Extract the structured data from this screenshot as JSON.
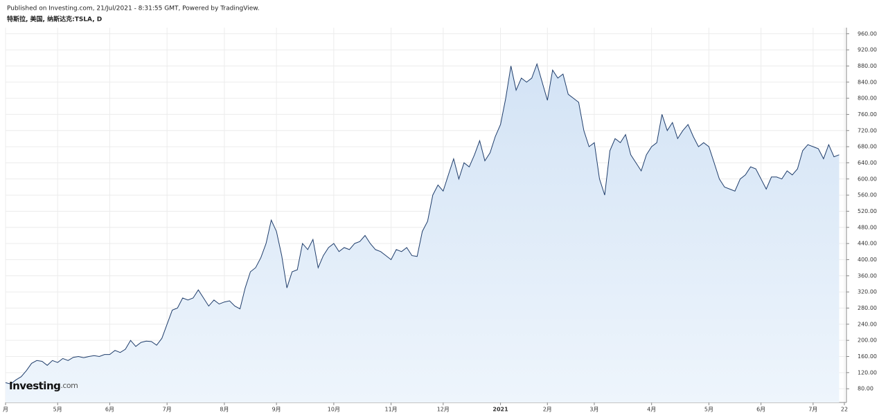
{
  "header": {
    "published": "Published on Investing.com, 21/Jul/2021 - 8:31:55 GMT, Powered by TradingView.",
    "symbol": "特斯拉, 美国, 纳斯达克:TSLA, D"
  },
  "logo": {
    "main": "Investing",
    "suffix": ".com"
  },
  "chart_data": {
    "type": "area",
    "color": "#1f3d6b",
    "fill": "#dce9f7",
    "grid": true,
    "y_axis_side": "right",
    "categories": [
      "月",
      null,
      null,
      null,
      null,
      null,
      null,
      null,
      null,
      null,
      "5月",
      null,
      null,
      null,
      null,
      null,
      null,
      null,
      null,
      null,
      "6月",
      null,
      null,
      null,
      null,
      null,
      null,
      null,
      null,
      null,
      null,
      "7月",
      null,
      null,
      null,
      null,
      null,
      null,
      null,
      null,
      null,
      null,
      "8月",
      null,
      null,
      null,
      null,
      null,
      null,
      null,
      null,
      null,
      "9月",
      null,
      null,
      null,
      null,
      null,
      null,
      null,
      null,
      null,
      null,
      "10月",
      null,
      null,
      null,
      null,
      null,
      null,
      null,
      null,
      null,
      null,
      "11月",
      null,
      null,
      null,
      null,
      null,
      null,
      null,
      null,
      null,
      "12月",
      null,
      null,
      null,
      null,
      null,
      null,
      null,
      null,
      null,
      null,
      "2021",
      null,
      null,
      null,
      null,
      null,
      null,
      null,
      null,
      "2月",
      null,
      null,
      null,
      null,
      null,
      null,
      null,
      null,
      "3月",
      null,
      null,
      null,
      null,
      null,
      null,
      null,
      null,
      null,
      null,
      "4月",
      null,
      null,
      null,
      null,
      null,
      null,
      null,
      null,
      null,
      null,
      "5月",
      null,
      null,
      null,
      null,
      null,
      null,
      null,
      null,
      null,
      "6月",
      null,
      null,
      null,
      null,
      null,
      null,
      null,
      null,
      null,
      "7月",
      null,
      null,
      null,
      null,
      null,
      "22"
    ],
    "values": [
      95,
      92,
      102,
      110,
      125,
      143,
      150,
      148,
      138,
      150,
      145,
      155,
      150,
      158,
      160,
      157,
      160,
      162,
      160,
      165,
      165,
      175,
      170,
      178,
      200,
      185,
      195,
      198,
      197,
      188,
      205,
      240,
      275,
      280,
      305,
      300,
      305,
      325,
      305,
      285,
      300,
      290,
      295,
      298,
      285,
      278,
      330,
      370,
      380,
      405,
      440,
      498,
      470,
      410,
      330,
      370,
      375,
      440,
      425,
      450,
      380,
      410,
      430,
      440,
      420,
      430,
      425,
      440,
      445,
      460,
      440,
      425,
      420,
      410,
      400,
      425,
      420,
      430,
      410,
      408,
      470,
      495,
      560,
      585,
      570,
      610,
      650,
      600,
      640,
      630,
      660,
      695,
      645,
      665,
      705,
      735,
      800,
      880,
      820,
      850,
      840,
      850,
      885,
      840,
      795,
      870,
      850,
      860,
      810,
      800,
      790,
      720,
      680,
      690,
      600,
      560,
      670,
      700,
      690,
      710,
      660,
      640,
      620,
      660,
      680,
      690,
      760,
      720,
      740,
      700,
      720,
      735,
      705,
      680,
      690,
      680,
      640,
      600,
      580,
      575,
      570,
      600,
      610,
      630,
      625,
      600,
      575,
      605,
      605,
      600,
      620,
      610,
      625,
      670,
      685,
      680,
      675,
      650,
      685,
      655,
      660,
      null
    ],
    "ylim": [
      46,
      975
    ],
    "yticks": [
      {
        "value": 80,
        "label": "80.00"
      },
      {
        "value": 120,
        "label": "120.00"
      },
      {
        "value": 160,
        "label": "160.00"
      },
      {
        "value": 200,
        "label": "200.00"
      },
      {
        "value": 240,
        "label": "240.00"
      },
      {
        "value": 280,
        "label": "280.00"
      },
      {
        "value": 320,
        "label": "320.00"
      },
      {
        "value": 360,
        "label": "360.00"
      },
      {
        "value": 400,
        "label": "400.00"
      },
      {
        "value": 440,
        "label": "440.00"
      },
      {
        "value": 480,
        "label": "480.00"
      },
      {
        "value": 520,
        "label": "520.00"
      },
      {
        "value": 560,
        "label": "560.00"
      },
      {
        "value": 600,
        "label": "600.00"
      },
      {
        "value": 640,
        "label": "640.00"
      },
      {
        "value": 680,
        "label": "680.00"
      },
      {
        "value": 720,
        "label": "720.00"
      },
      {
        "value": 760,
        "label": "760.00"
      },
      {
        "value": 800,
        "label": "800.00"
      },
      {
        "value": 840,
        "label": "840.00"
      },
      {
        "value": 880,
        "label": "880.00"
      },
      {
        "value": 920,
        "label": "920.00"
      },
      {
        "value": 960,
        "label": "960.00"
      }
    ]
  }
}
